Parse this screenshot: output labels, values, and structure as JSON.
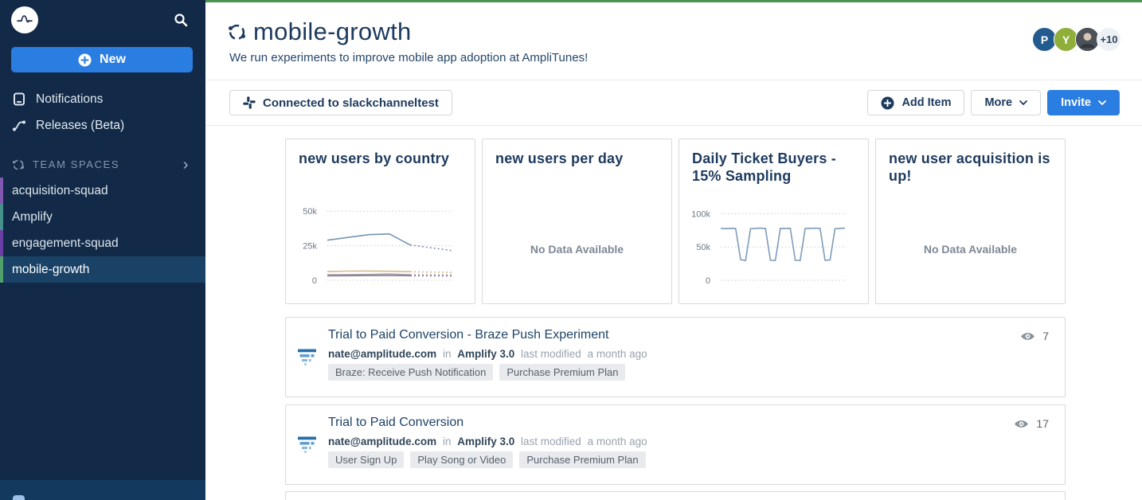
{
  "colors": {
    "accent_blue": "#2a7de1",
    "top_stripe_green": "#4a9450",
    "sidebar_bg": "#122a47",
    "sidebar_selected_bg": "#1a4266",
    "navy_text": "#1d3a5e"
  },
  "sidebar": {
    "logo_name": "Amplitude",
    "new_button_label": "New",
    "items": [
      {
        "label": "Notifications",
        "icon": "notifications-icon"
      },
      {
        "label": "Releases (Beta)",
        "icon": "releases-icon"
      }
    ],
    "team_spaces": {
      "header_label": "TEAM SPACES",
      "spaces": [
        {
          "label": "acquisition-squad",
          "strip_color": "#8157b0",
          "selected": false
        },
        {
          "label": "Amplify",
          "strip_color": "#46918b",
          "selected": false
        },
        {
          "label": "engagement-squad",
          "strip_color": "#6b3fa5",
          "selected": false
        },
        {
          "label": "mobile-growth",
          "strip_color": "#4fa06b",
          "selected": true
        }
      ]
    }
  },
  "header": {
    "title": "mobile-growth",
    "subtitle": "We run experiments to improve mobile app adoption at AmpliTunes!",
    "avatars": [
      {
        "initial": "P",
        "bg": "#245b8f",
        "fg": "#ffffff"
      },
      {
        "initial": "Y",
        "bg": "#8fae3a",
        "fg": "#ffffff"
      },
      {
        "type": "photo",
        "initial": "",
        "bg": "#4d5258",
        "fg": "#ffffff"
      },
      {
        "initial": "+10",
        "bg": "#edf1f6",
        "fg": "#33475c"
      }
    ]
  },
  "toolbar": {
    "connected_label": "Connected to slackchanneltest",
    "add_item_label": "Add Item",
    "more_label": "More",
    "invite_label": "Invite"
  },
  "cards": [
    {
      "title": "new users by country",
      "type": "chart"
    },
    {
      "title": "new users per day",
      "type": "empty",
      "empty_text": "No Data Available"
    },
    {
      "title": "Daily Ticket Buyers - 15% Sampling",
      "type": "chart"
    },
    {
      "title": "new user acquisition is up!",
      "type": "empty",
      "empty_text": "No Data Available"
    }
  ],
  "chart_data": [
    {
      "type": "line",
      "title": "new users by country",
      "xlabel": "",
      "ylabel": "",
      "ylim": [
        0,
        53000
      ],
      "grid": "dotted-horizontal",
      "legend": false,
      "yticks": [
        {
          "label": "50k",
          "value": 50000
        },
        {
          "label": "25k",
          "value": 25000
        },
        {
          "label": "0",
          "value": 0
        }
      ],
      "solid_until_index": 4,
      "series": [
        {
          "name": "series-1",
          "color": "#7494b3",
          "values": [
            29000,
            31000,
            33000,
            33500,
            25500,
            23500,
            21500
          ]
        },
        {
          "name": "series-2",
          "color": "#d8ba8c",
          "values": [
            6300,
            6600,
            6700,
            6500,
            6200,
            5900,
            5700
          ]
        },
        {
          "name": "series-3",
          "color": "#a3a0ac",
          "values": [
            4000,
            4100,
            4200,
            4500,
            4000,
            3900,
            3800
          ]
        },
        {
          "name": "series-4",
          "color": "#8f7d94",
          "values": [
            3200,
            3300,
            3400,
            3400,
            3300,
            3200,
            3100
          ]
        }
      ]
    },
    {
      "type": "line",
      "title": "Daily Ticket Buyers - 15% Sampling",
      "xlabel": "",
      "ylabel": "",
      "ylim": [
        0,
        110000
      ],
      "grid": "dotted-horizontal",
      "legend": false,
      "yticks": [
        {
          "label": "100k",
          "value": 100000
        },
        {
          "label": "50k",
          "value": 50000
        },
        {
          "label": "0",
          "value": 0
        }
      ],
      "series": [
        {
          "name": "daily-ticket-buyers",
          "color": "#7d9cba",
          "values": [
            78000,
            77500,
            78000,
            77800,
            31000,
            29500,
            77500,
            78000,
            78200,
            77800,
            30000,
            29800,
            78000,
            77800,
            78000,
            30000,
            29800,
            77800,
            78000,
            78200,
            77800,
            30000,
            30500,
            77500,
            78000,
            78200
          ]
        }
      ]
    }
  ],
  "rows": [
    {
      "icon": "funnel-chart-icon",
      "title": "Trial to Paid Conversion - Braze Push Experiment",
      "owner": "nate@amplitude.com",
      "in_label": "in",
      "project": "Amplify 3.0",
      "modified_label": "last modified",
      "modified_ago": "a month ago",
      "tags": [
        "Braze: Receive Push Notification",
        "Purchase Premium Plan"
      ],
      "views": "7"
    },
    {
      "icon": "funnel-chart-icon",
      "title": "Trial to Paid Conversion",
      "owner": "nate@amplitude.com",
      "in_label": "in",
      "project": "Amplify 3.0",
      "modified_label": "last modified",
      "modified_ago": "a month ago",
      "tags": [
        "User Sign Up",
        "Play Song or Video",
        "Purchase Premium Plan"
      ],
      "views": "17"
    }
  ]
}
